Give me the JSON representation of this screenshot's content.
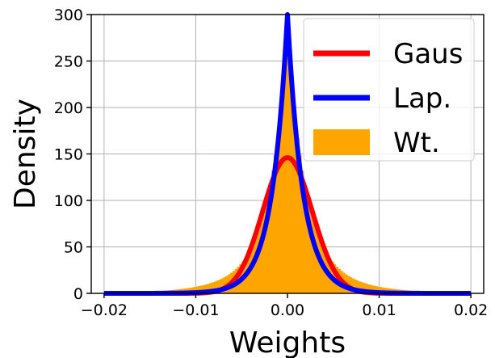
{
  "chart_data": {
    "type": "line",
    "title": "",
    "xlabel": "Weights",
    "ylabel": "Density",
    "xlim": [
      -0.0214,
      0.0214
    ],
    "ylim": [
      0,
      300
    ],
    "xticks": [
      -0.02,
      -0.01,
      0.0,
      0.01,
      0.02
    ],
    "xtick_labels": [
      "−0.02",
      "−0.01",
      "0.00",
      "0.01",
      "0.02"
    ],
    "yticks": [
      0,
      50,
      100,
      150,
      200,
      250,
      300
    ],
    "ytick_labels": [
      "0",
      "50",
      "100",
      "150",
      "200",
      "250",
      "300"
    ],
    "grid": true,
    "legend_position": "top-right",
    "series": [
      {
        "name": "Gaus",
        "kind": "line",
        "color": "#ff0000",
        "distribution": "gaussian",
        "mean": 0.0,
        "std": 0.0027,
        "peak": 146
      },
      {
        "name": "Lap.",
        "kind": "line",
        "color": "#0000ff",
        "distribution": "laplace",
        "loc": 0.0,
        "scale": 0.00168,
        "peak": 300
      },
      {
        "name": "Wt.",
        "kind": "histogram",
        "color": "#ffa500",
        "range": [
          -0.02,
          0.02
        ],
        "bins": 160,
        "peak": 290
      }
    ]
  }
}
